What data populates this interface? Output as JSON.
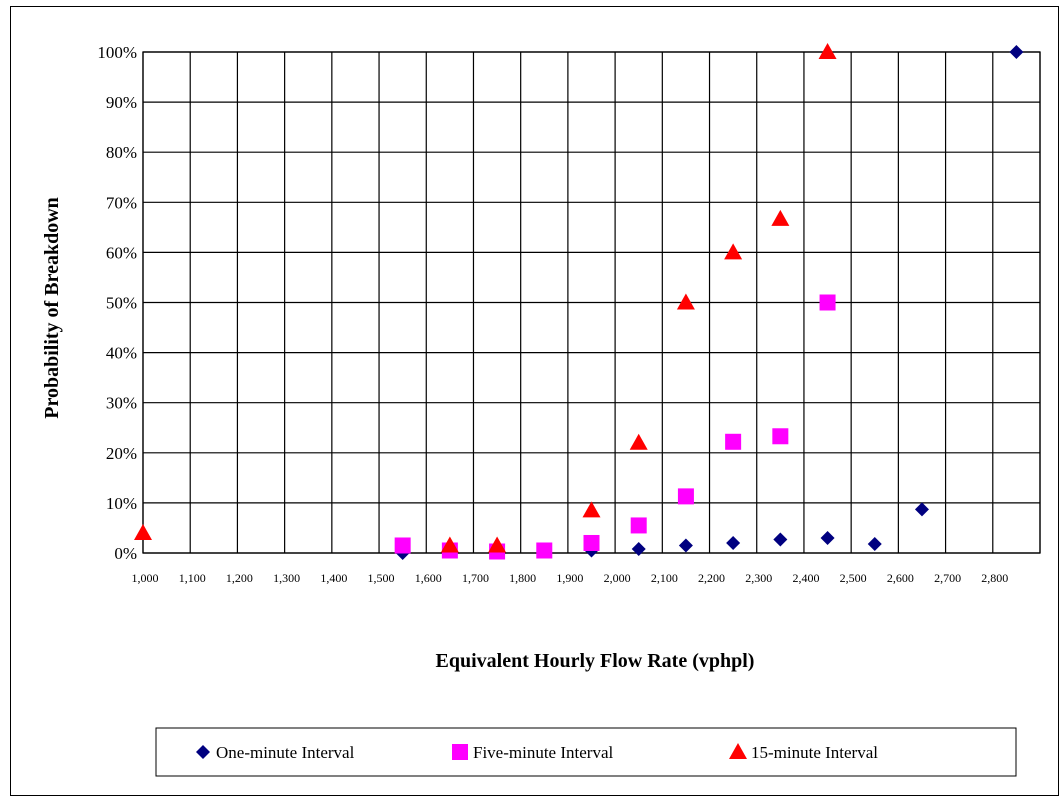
{
  "chart_data": {
    "type": "scatter",
    "xlabel": "Equivalent Hourly Flow Rate (vphpl)",
    "ylabel": "Probability of Breakdown",
    "xlim": [
      1000,
      2900
    ],
    "ylim": [
      0,
      100
    ],
    "x_ticks": [
      "1,000",
      "1,100",
      "1,200",
      "1,300",
      "1,400",
      "1,500",
      "1,600",
      "1,700",
      "1,800",
      "1,900",
      "2,000",
      "2,100",
      "2,200",
      "2,300",
      "2,400",
      "2,500",
      "2,600",
      "2,700",
      "2,800"
    ],
    "y_ticks": [
      "0%",
      "10%",
      "20%",
      "30%",
      "40%",
      "50%",
      "60%",
      "70%",
      "80%",
      "90%",
      "100%"
    ],
    "grid": true,
    "legend_position": "bottom",
    "series": [
      {
        "name": "One-minute Interval",
        "marker": "diamond",
        "color": "#000080",
        "points": [
          {
            "x": 1550,
            "y": 0
          },
          {
            "x": 1950,
            "y": 0.5
          },
          {
            "x": 2050,
            "y": 0.8
          },
          {
            "x": 2150,
            "y": 1.5
          },
          {
            "x": 2250,
            "y": 2.0
          },
          {
            "x": 2350,
            "y": 2.7
          },
          {
            "x": 2450,
            "y": 3.0
          },
          {
            "x": 2550,
            "y": 1.8
          },
          {
            "x": 2650,
            "y": 8.7
          },
          {
            "x": 2850,
            "y": 100
          }
        ]
      },
      {
        "name": "Five-minute Interval",
        "marker": "square",
        "color": "#ff00ff",
        "points": [
          {
            "x": 1550,
            "y": 1.5
          },
          {
            "x": 1650,
            "y": 0.5
          },
          {
            "x": 1750,
            "y": 0.3
          },
          {
            "x": 1850,
            "y": 0.5
          },
          {
            "x": 1950,
            "y": 2.0
          },
          {
            "x": 2050,
            "y": 5.5
          },
          {
            "x": 2150,
            "y": 11.3
          },
          {
            "x": 2250,
            "y": 22.2
          },
          {
            "x": 2350,
            "y": 23.3
          },
          {
            "x": 2450,
            "y": 50
          }
        ]
      },
      {
        "name": "15-minute Interval",
        "marker": "triangle",
        "color": "#ff0000",
        "points": [
          {
            "x": 1000,
            "y": 4.0
          },
          {
            "x": 1650,
            "y": 1.5
          },
          {
            "x": 1750,
            "y": 1.5
          },
          {
            "x": 1950,
            "y": 8.5
          },
          {
            "x": 2050,
            "y": 22
          },
          {
            "x": 2150,
            "y": 50
          },
          {
            "x": 2250,
            "y": 60
          },
          {
            "x": 2350,
            "y": 66.7
          },
          {
            "x": 2450,
            "y": 100
          }
        ]
      }
    ]
  }
}
